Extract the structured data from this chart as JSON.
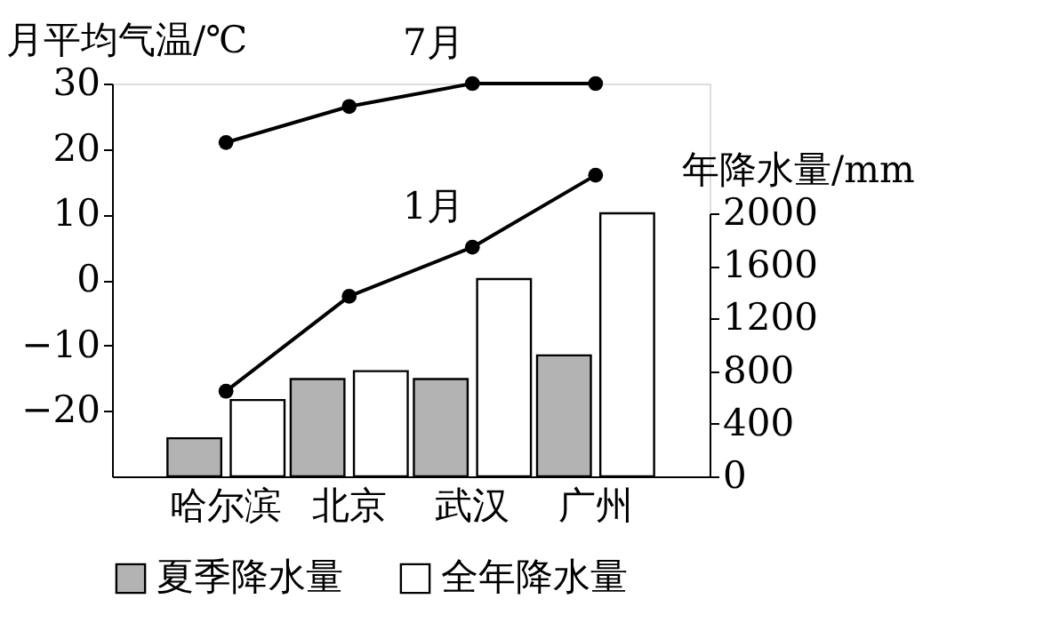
{
  "chart_data": {
    "type": "bar",
    "categories": [
      "哈尔滨",
      "北京",
      "武汉",
      "广州"
    ],
    "ylabel": "月平均气温/℃",
    "y2label": "年降水量/mm",
    "ylim": [
      -30,
      30
    ],
    "yticks": [
      -20,
      -10,
      0,
      10,
      20,
      30
    ],
    "y2lim": [
      0,
      2000
    ],
    "y2ticks": [
      0,
      400,
      800,
      1200,
      1600,
      2000
    ],
    "legend": "bottom",
    "marker": "circle",
    "series": [
      {
        "name": "夏季降水量",
        "axis": "y2",
        "color": "#b3b3b3",
        "values": [
          290,
          740,
          740,
          920
        ]
      },
      {
        "name": "全年降水量",
        "axis": "y2",
        "color": "#ffffff",
        "values": [
          580,
          800,
          1500,
          2000
        ]
      },
      {
        "name": "7月",
        "type": "line",
        "axis": "y",
        "color": "#000000",
        "values": [
          21,
          26.5,
          30,
          30
        ]
      },
      {
        "name": "1月",
        "type": "line",
        "axis": "y",
        "color": "#000000",
        "values": [
          -17,
          -2.5,
          5,
          16
        ]
      }
    ]
  }
}
